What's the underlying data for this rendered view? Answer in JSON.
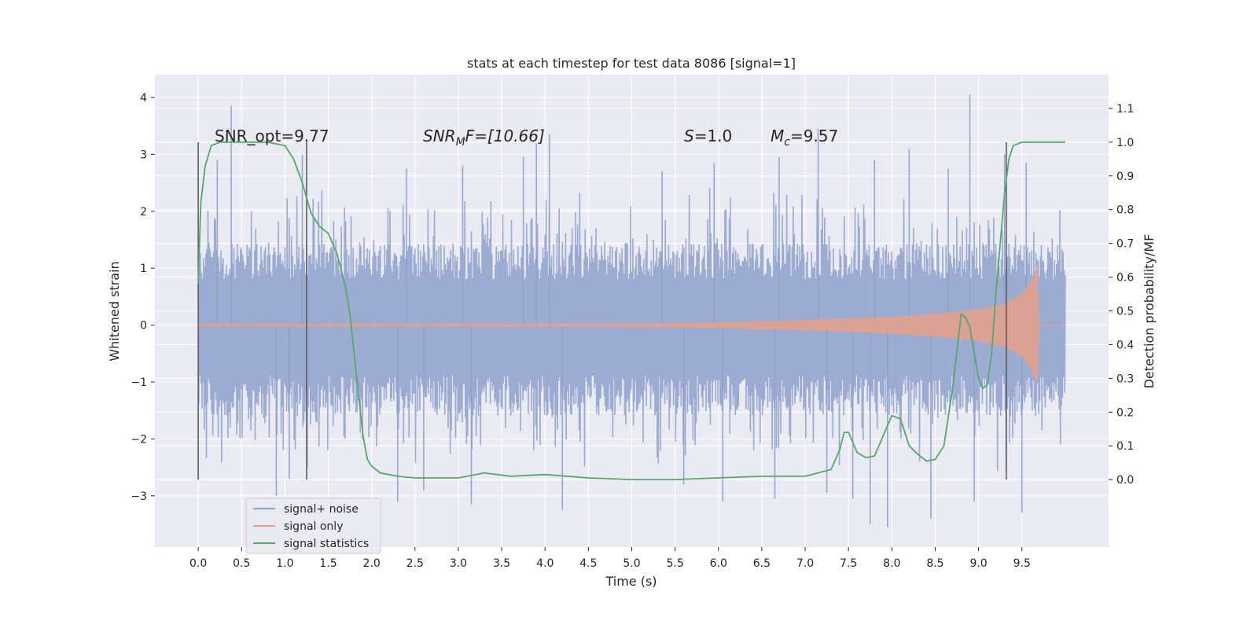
{
  "chart_data": {
    "type": "line",
    "title": "stats at each timestep for test data 8086 [signal=1]",
    "xlabel": "Time (s)",
    "ylabel_left": "Whitened strain",
    "ylabel_right": "Detection probability/MF",
    "xlim": [
      -0.5,
      10.5
    ],
    "ylim_left": [
      -3.9,
      4.4
    ],
    "ylim_right": [
      -0.2,
      1.2
    ],
    "x_ticks": [
      "0.0",
      "0.5",
      "1.0",
      "1.5",
      "2.0",
      "2.5",
      "3.0",
      "3.5",
      "4.0",
      "4.5",
      "5.0",
      "5.5",
      "6.0",
      "6.5",
      "7.0",
      "7.5",
      "8.0",
      "8.5",
      "9.0",
      "9.5"
    ],
    "y_left_ticks": [
      "4",
      "3",
      "2",
      "1",
      "0",
      "−1",
      "−2",
      "−3"
    ],
    "y_right_ticks": [
      "1.1",
      "1.0",
      "0.9",
      "0.8",
      "0.7",
      "0.6",
      "0.5",
      "0.4",
      "0.3",
      "0.2",
      "0.1",
      "0.0"
    ],
    "grid": true,
    "legend_position": "lower-left",
    "annotations": {
      "snr_opt": "SNR_opt=9.77",
      "snr_mf_sym": "SNR",
      "snr_mf_sub": "M",
      "snr_mf_rest": "F=[10.66]",
      "s_sym": "S",
      "s_rest": "=1.0",
      "mc_sym": "M",
      "mc_sub": "c",
      "mc_rest": "=9.57"
    },
    "vertical_markers": [
      0.0,
      1.25,
      9.32
    ],
    "series": [
      {
        "name": "signal+ noise",
        "color": "#8da0cb",
        "axis": "left",
        "x_range": [
          0.0,
          10.0
        ],
        "envelope_low": -1.6,
        "envelope_high": 1.45,
        "spikes_up": [
          [
            0.38,
            3.85
          ],
          [
            0.22,
            2.9
          ],
          [
            1.2,
            3.0
          ],
          [
            2.4,
            2.75
          ],
          [
            3.05,
            2.8
          ],
          [
            3.75,
            2.95
          ],
          [
            3.9,
            3.2
          ],
          [
            4.05,
            3.35
          ],
          [
            5.35,
            2.7
          ],
          [
            5.95,
            2.85
          ],
          [
            6.7,
            2.95
          ],
          [
            7.15,
            3.45
          ],
          [
            7.8,
            2.9
          ],
          [
            8.2,
            3.1
          ],
          [
            8.65,
            2.75
          ],
          [
            8.9,
            4.05
          ],
          [
            9.3,
            3.0
          ],
          [
            9.55,
            2.85
          ]
        ],
        "spikes_down": [
          [
            0.9,
            -3.0
          ],
          [
            1.05,
            -2.7
          ],
          [
            2.3,
            -3.1
          ],
          [
            2.6,
            -2.9
          ],
          [
            3.15,
            -3.15
          ],
          [
            4.2,
            -3.25
          ],
          [
            5.6,
            -2.8
          ],
          [
            6.05,
            -3.1
          ],
          [
            6.65,
            -3.05
          ],
          [
            7.25,
            -2.95
          ],
          [
            7.55,
            -3.05
          ],
          [
            7.75,
            -3.5
          ],
          [
            7.95,
            -3.55
          ],
          [
            8.45,
            -3.4
          ],
          [
            8.95,
            -3.1
          ],
          [
            9.5,
            -3.3
          ]
        ]
      },
      {
        "name": "signal only",
        "color": "#e5a08a",
        "axis": "left",
        "x": [
          0.0,
          5.0,
          6.0,
          7.0,
          8.0,
          8.5,
          9.0,
          9.3,
          9.5,
          9.62,
          9.68,
          9.7,
          10.0
        ],
        "amplitude": [
          0.02,
          0.03,
          0.05,
          0.09,
          0.15,
          0.2,
          0.28,
          0.38,
          0.55,
          0.8,
          1.05,
          0.0,
          0.0
        ]
      },
      {
        "name": "signal statistics",
        "color": "#55a868",
        "axis": "right",
        "x": [
          0.0,
          0.03,
          0.08,
          0.15,
          0.25,
          0.4,
          0.6,
          0.8,
          1.0,
          1.1,
          1.2,
          1.3,
          1.4,
          1.5,
          1.6,
          1.7,
          1.75,
          1.8,
          1.85,
          1.9,
          1.95,
          2.0,
          2.1,
          2.2,
          2.3,
          2.5,
          3.0,
          3.3,
          3.6,
          4.0,
          4.5,
          5.0,
          5.5,
          6.0,
          6.5,
          7.0,
          7.3,
          7.4,
          7.45,
          7.5,
          7.55,
          7.6,
          7.7,
          7.8,
          7.9,
          8.0,
          8.1,
          8.2,
          8.3,
          8.4,
          8.5,
          8.6,
          8.7,
          8.8,
          8.85,
          8.9,
          9.0,
          9.05,
          9.1,
          9.15,
          9.2,
          9.3,
          9.35,
          9.4,
          9.5,
          9.6,
          10.0
        ],
        "y": [
          0.58,
          0.82,
          0.93,
          0.99,
          1.0,
          1.0,
          1.0,
          1.0,
          0.99,
          0.95,
          0.88,
          0.79,
          0.75,
          0.73,
          0.67,
          0.57,
          0.49,
          0.37,
          0.25,
          0.13,
          0.06,
          0.04,
          0.02,
          0.015,
          0.01,
          0.005,
          0.005,
          0.02,
          0.01,
          0.015,
          0.005,
          0.0,
          0.0,
          0.005,
          0.01,
          0.01,
          0.03,
          0.09,
          0.14,
          0.14,
          0.11,
          0.08,
          0.065,
          0.07,
          0.13,
          0.19,
          0.18,
          0.1,
          0.075,
          0.055,
          0.06,
          0.1,
          0.27,
          0.49,
          0.48,
          0.45,
          0.3,
          0.27,
          0.28,
          0.37,
          0.55,
          0.85,
          0.95,
          0.99,
          1.0,
          1.0,
          1.0
        ]
      }
    ]
  }
}
